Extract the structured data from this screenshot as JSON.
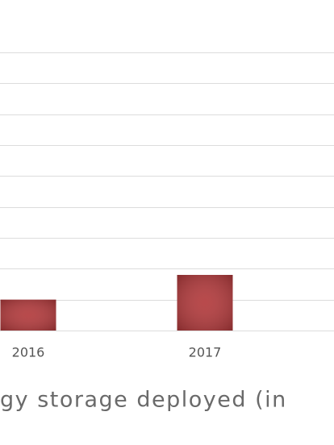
{
  "chart_data": {
    "type": "bar",
    "x_axis_label": "gy storage deployed (in",
    "categories": [
      "2016",
      "2017"
    ],
    "values": [
      1.0,
      1.8
    ],
    "color": "#b23a3c",
    "ylim": [
      0,
      9
    ],
    "yticks": [
      0,
      1,
      2,
      3,
      4,
      5,
      6,
      7,
      8,
      9
    ],
    "grid": true
  }
}
